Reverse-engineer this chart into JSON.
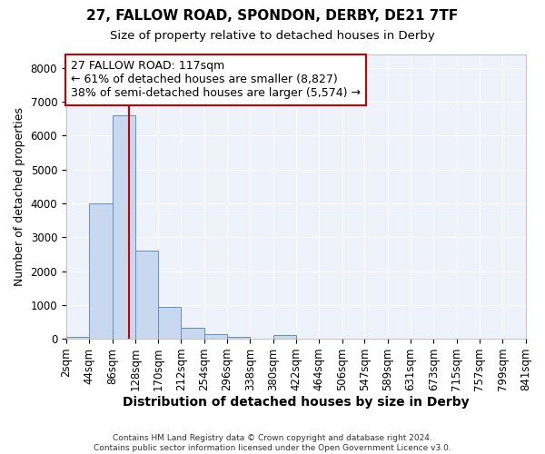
{
  "title1": "27, FALLOW ROAD, SPONDON, DERBY, DE21 7TF",
  "title2": "Size of property relative to detached houses in Derby",
  "xlabel": "Distribution of detached houses by size in Derby",
  "ylabel": "Number of detached properties",
  "bar_color": "#c8d8ee",
  "bar_edge_color": "#6090c8",
  "background_color": "#eef2fa",
  "grid_color": "#ffffff",
  "bin_edges": [
    2,
    44,
    86,
    128,
    170,
    212,
    254,
    296,
    338,
    380,
    422,
    464,
    506,
    547,
    589,
    631,
    673,
    715,
    757,
    799,
    841
  ],
  "bin_labels": [
    "2sqm",
    "44sqm",
    "86sqm",
    "128sqm",
    "170sqm",
    "212sqm",
    "254sqm",
    "296sqm",
    "338sqm",
    "380sqm",
    "422sqm",
    "464sqm",
    "506sqm",
    "547sqm",
    "589sqm",
    "631sqm",
    "673sqm",
    "715sqm",
    "757sqm",
    "799sqm",
    "841sqm"
  ],
  "bar_heights": [
    50,
    4000,
    6600,
    2600,
    950,
    330,
    150,
    50,
    0,
    100,
    0,
    0,
    0,
    0,
    0,
    0,
    0,
    0,
    0,
    0
  ],
  "property_size": 117,
  "vline_color": "#cc0000",
  "annotation_text": "27 FALLOW ROAD: 117sqm\n← 61% of detached houses are smaller (8,827)\n38% of semi-detached houses are larger (5,574) →",
  "annotation_box_color": "#cc0000",
  "ylim": [
    0,
    8400
  ],
  "yticks": [
    0,
    1000,
    2000,
    3000,
    4000,
    5000,
    6000,
    7000,
    8000
  ],
  "footnote": "Contains HM Land Registry data © Crown copyright and database right 2024.\nContains public sector information licensed under the Open Government Licence v3.0.",
  "title1_fontsize": 11,
  "title2_fontsize": 9.5,
  "xlabel_fontsize": 10,
  "ylabel_fontsize": 9,
  "tick_fontsize": 8.5,
  "annot_fontsize": 9
}
